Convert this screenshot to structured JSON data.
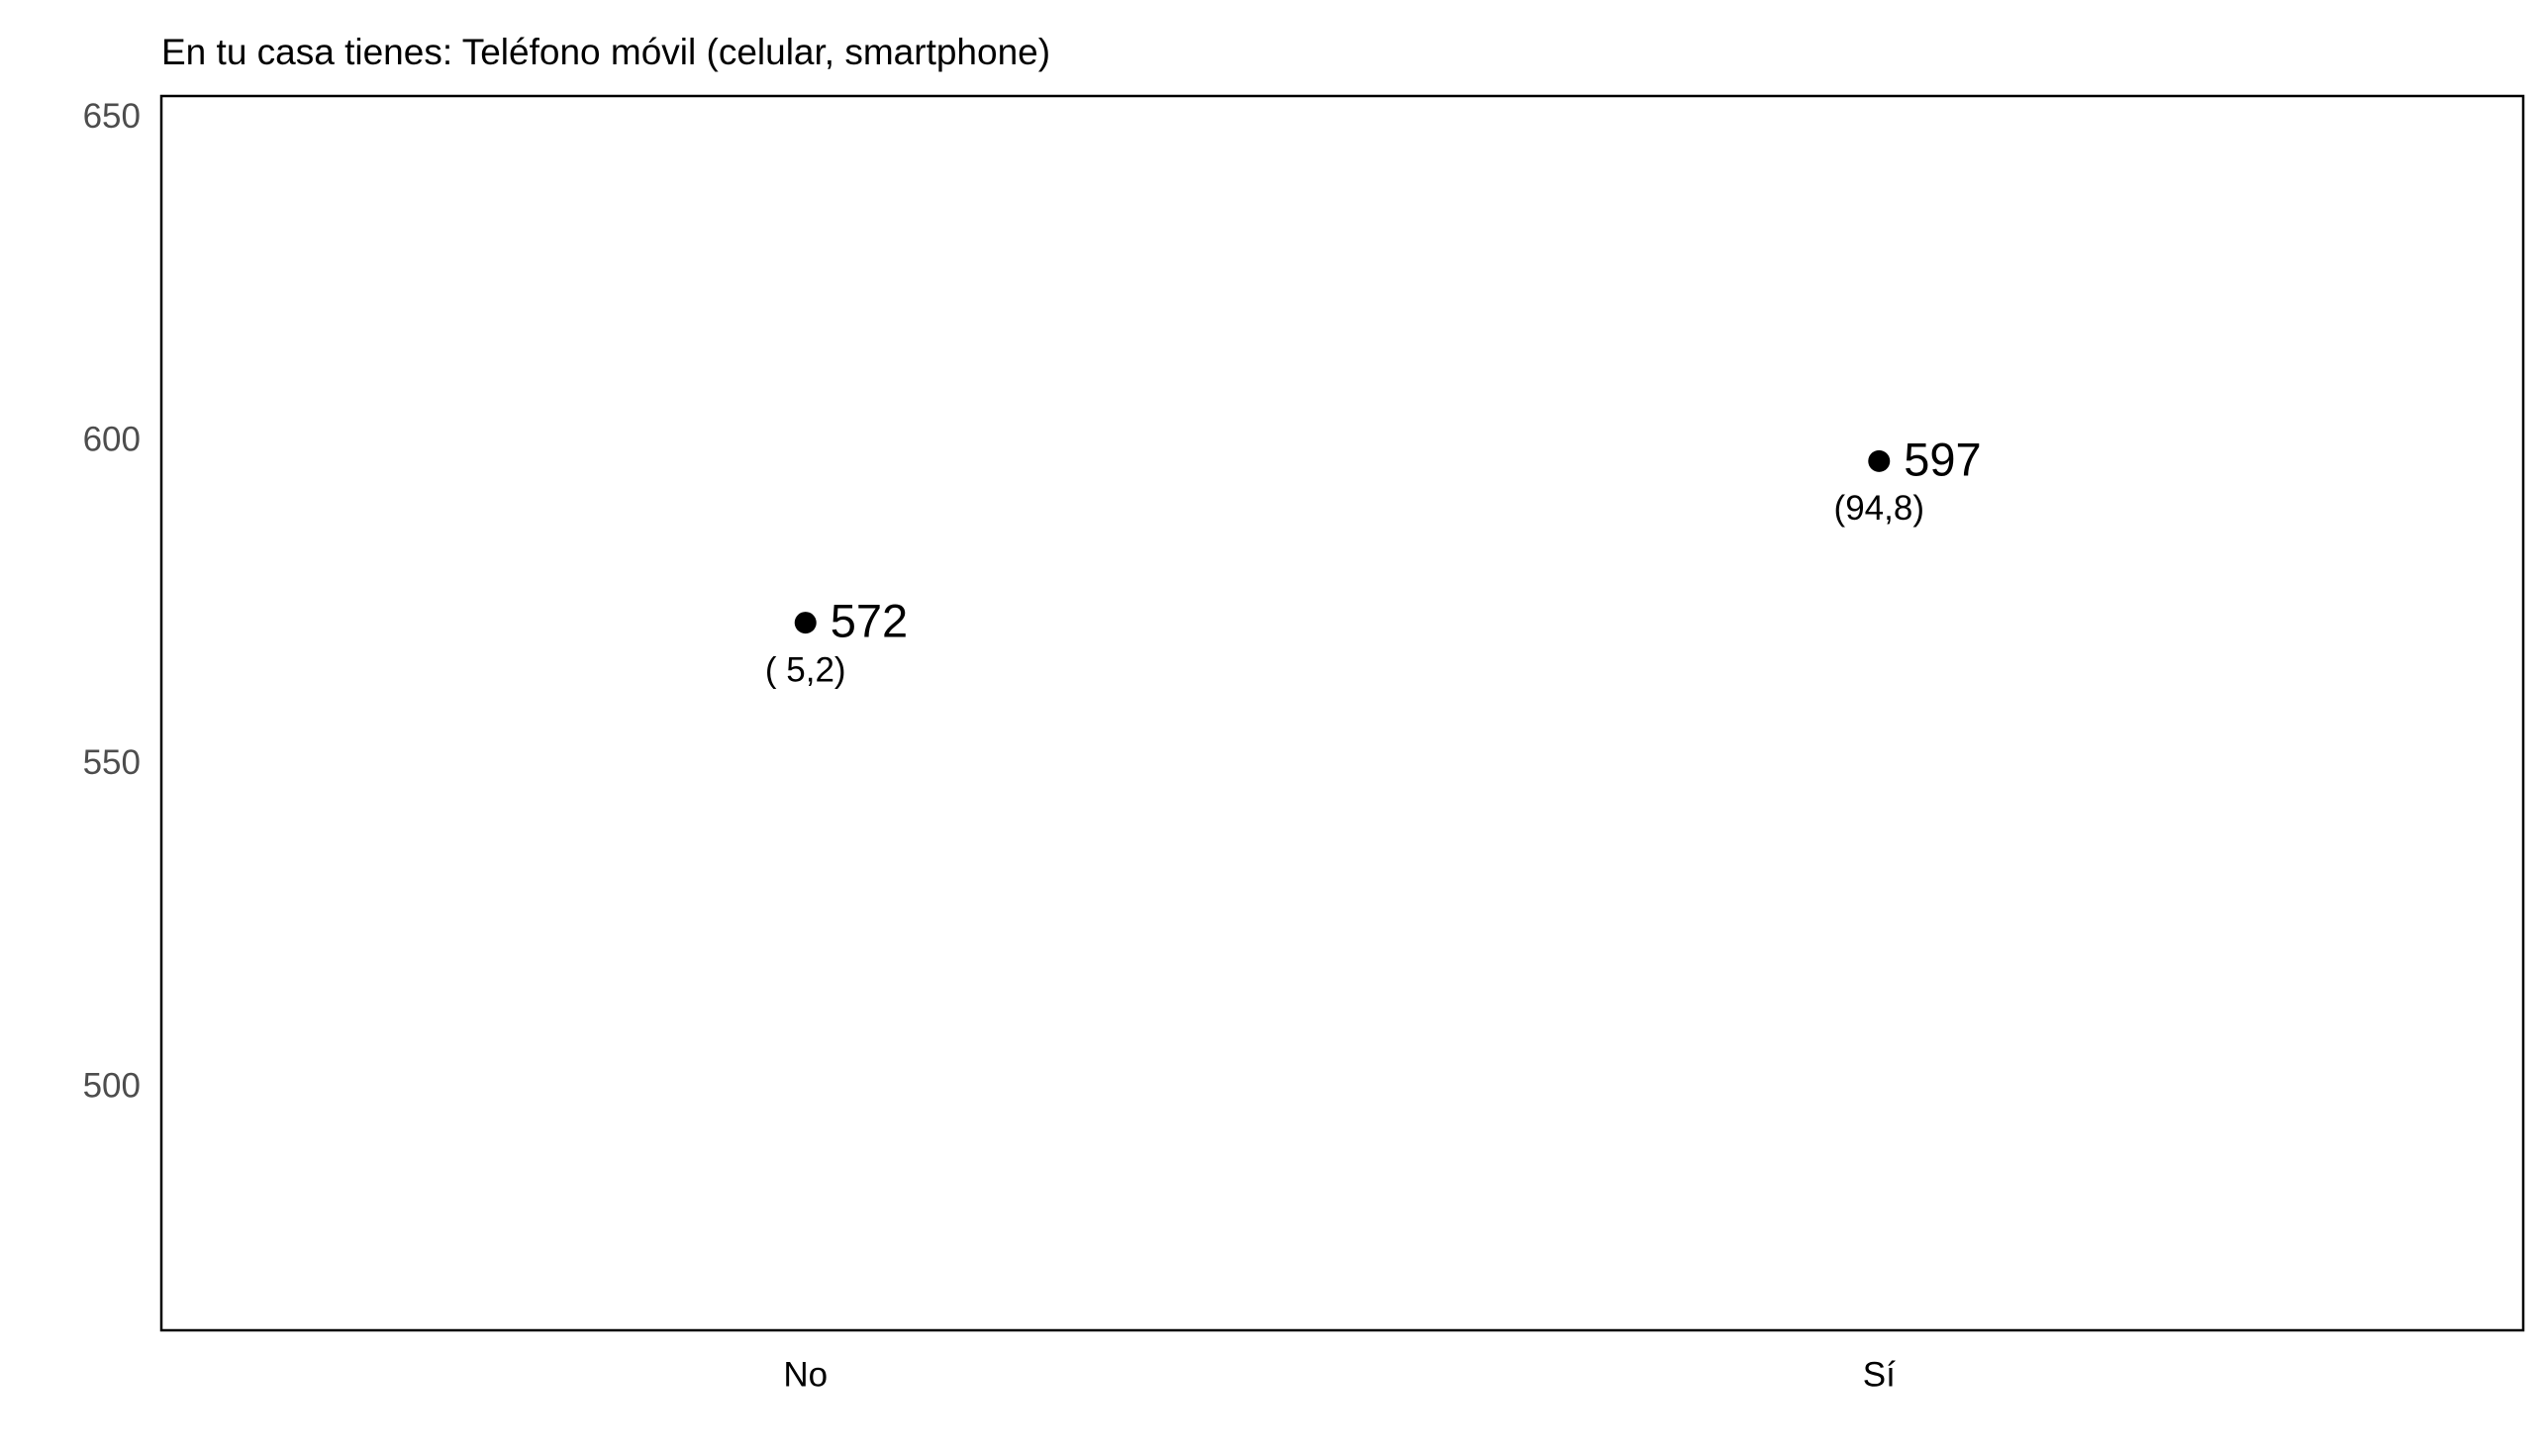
{
  "chart_data": {
    "type": "scatter",
    "title": "En tu casa tienes: Teléfono móvil (celular, smartphone)",
    "xlabel": "",
    "ylabel": "",
    "categories": [
      "No",
      "Sí"
    ],
    "values": [
      572,
      597
    ],
    "value_labels": [
      "572",
      "597"
    ],
    "percent_labels": [
      "( 5,2)",
      "(94,8)"
    ],
    "yticks": [
      500,
      550,
      600,
      650
    ],
    "ytick_labels": [
      "500",
      "550",
      "600",
      "650"
    ],
    "ylim": [
      462.5,
      653.5
    ],
    "grid": false,
    "legend": "none",
    "colors": {
      "point": "#000000",
      "frame": "#000000",
      "ytick_text": "#4d4d4d",
      "text": "#000000"
    }
  }
}
